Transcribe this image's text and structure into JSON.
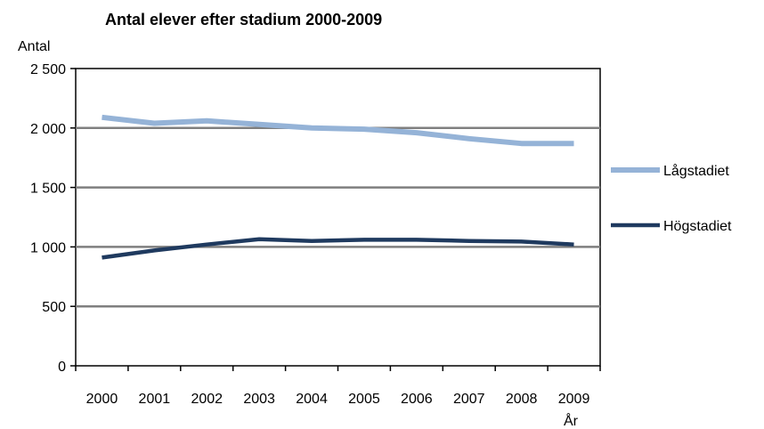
{
  "chart_data": {
    "type": "line",
    "title": "Antal elever efter stadium 2000-2009",
    "ylabel": "Antal",
    "xlabel": "År",
    "categories": [
      "2000",
      "2001",
      "2002",
      "2003",
      "2004",
      "2005",
      "2006",
      "2007",
      "2008",
      "2009"
    ],
    "ylim": [
      0,
      2500
    ],
    "yticks": [
      0,
      500,
      1000,
      1500,
      2000,
      2500
    ],
    "ytick_labels": [
      "0",
      "500",
      "1 000",
      "1 500",
      "2 000",
      "2 500"
    ],
    "grid": true,
    "legend_position": "right",
    "series": [
      {
        "name": "Lågstadiet",
        "color": "#95b3d7",
        "values": [
          2090,
          2040,
          2060,
          2030,
          2000,
          1990,
          1960,
          1910,
          1870,
          1870
        ]
      },
      {
        "name": "Högstadiet",
        "color": "#1f3a5f",
        "values": [
          910,
          970,
          1020,
          1065,
          1050,
          1060,
          1060,
          1050,
          1045,
          1020
        ]
      }
    ]
  }
}
